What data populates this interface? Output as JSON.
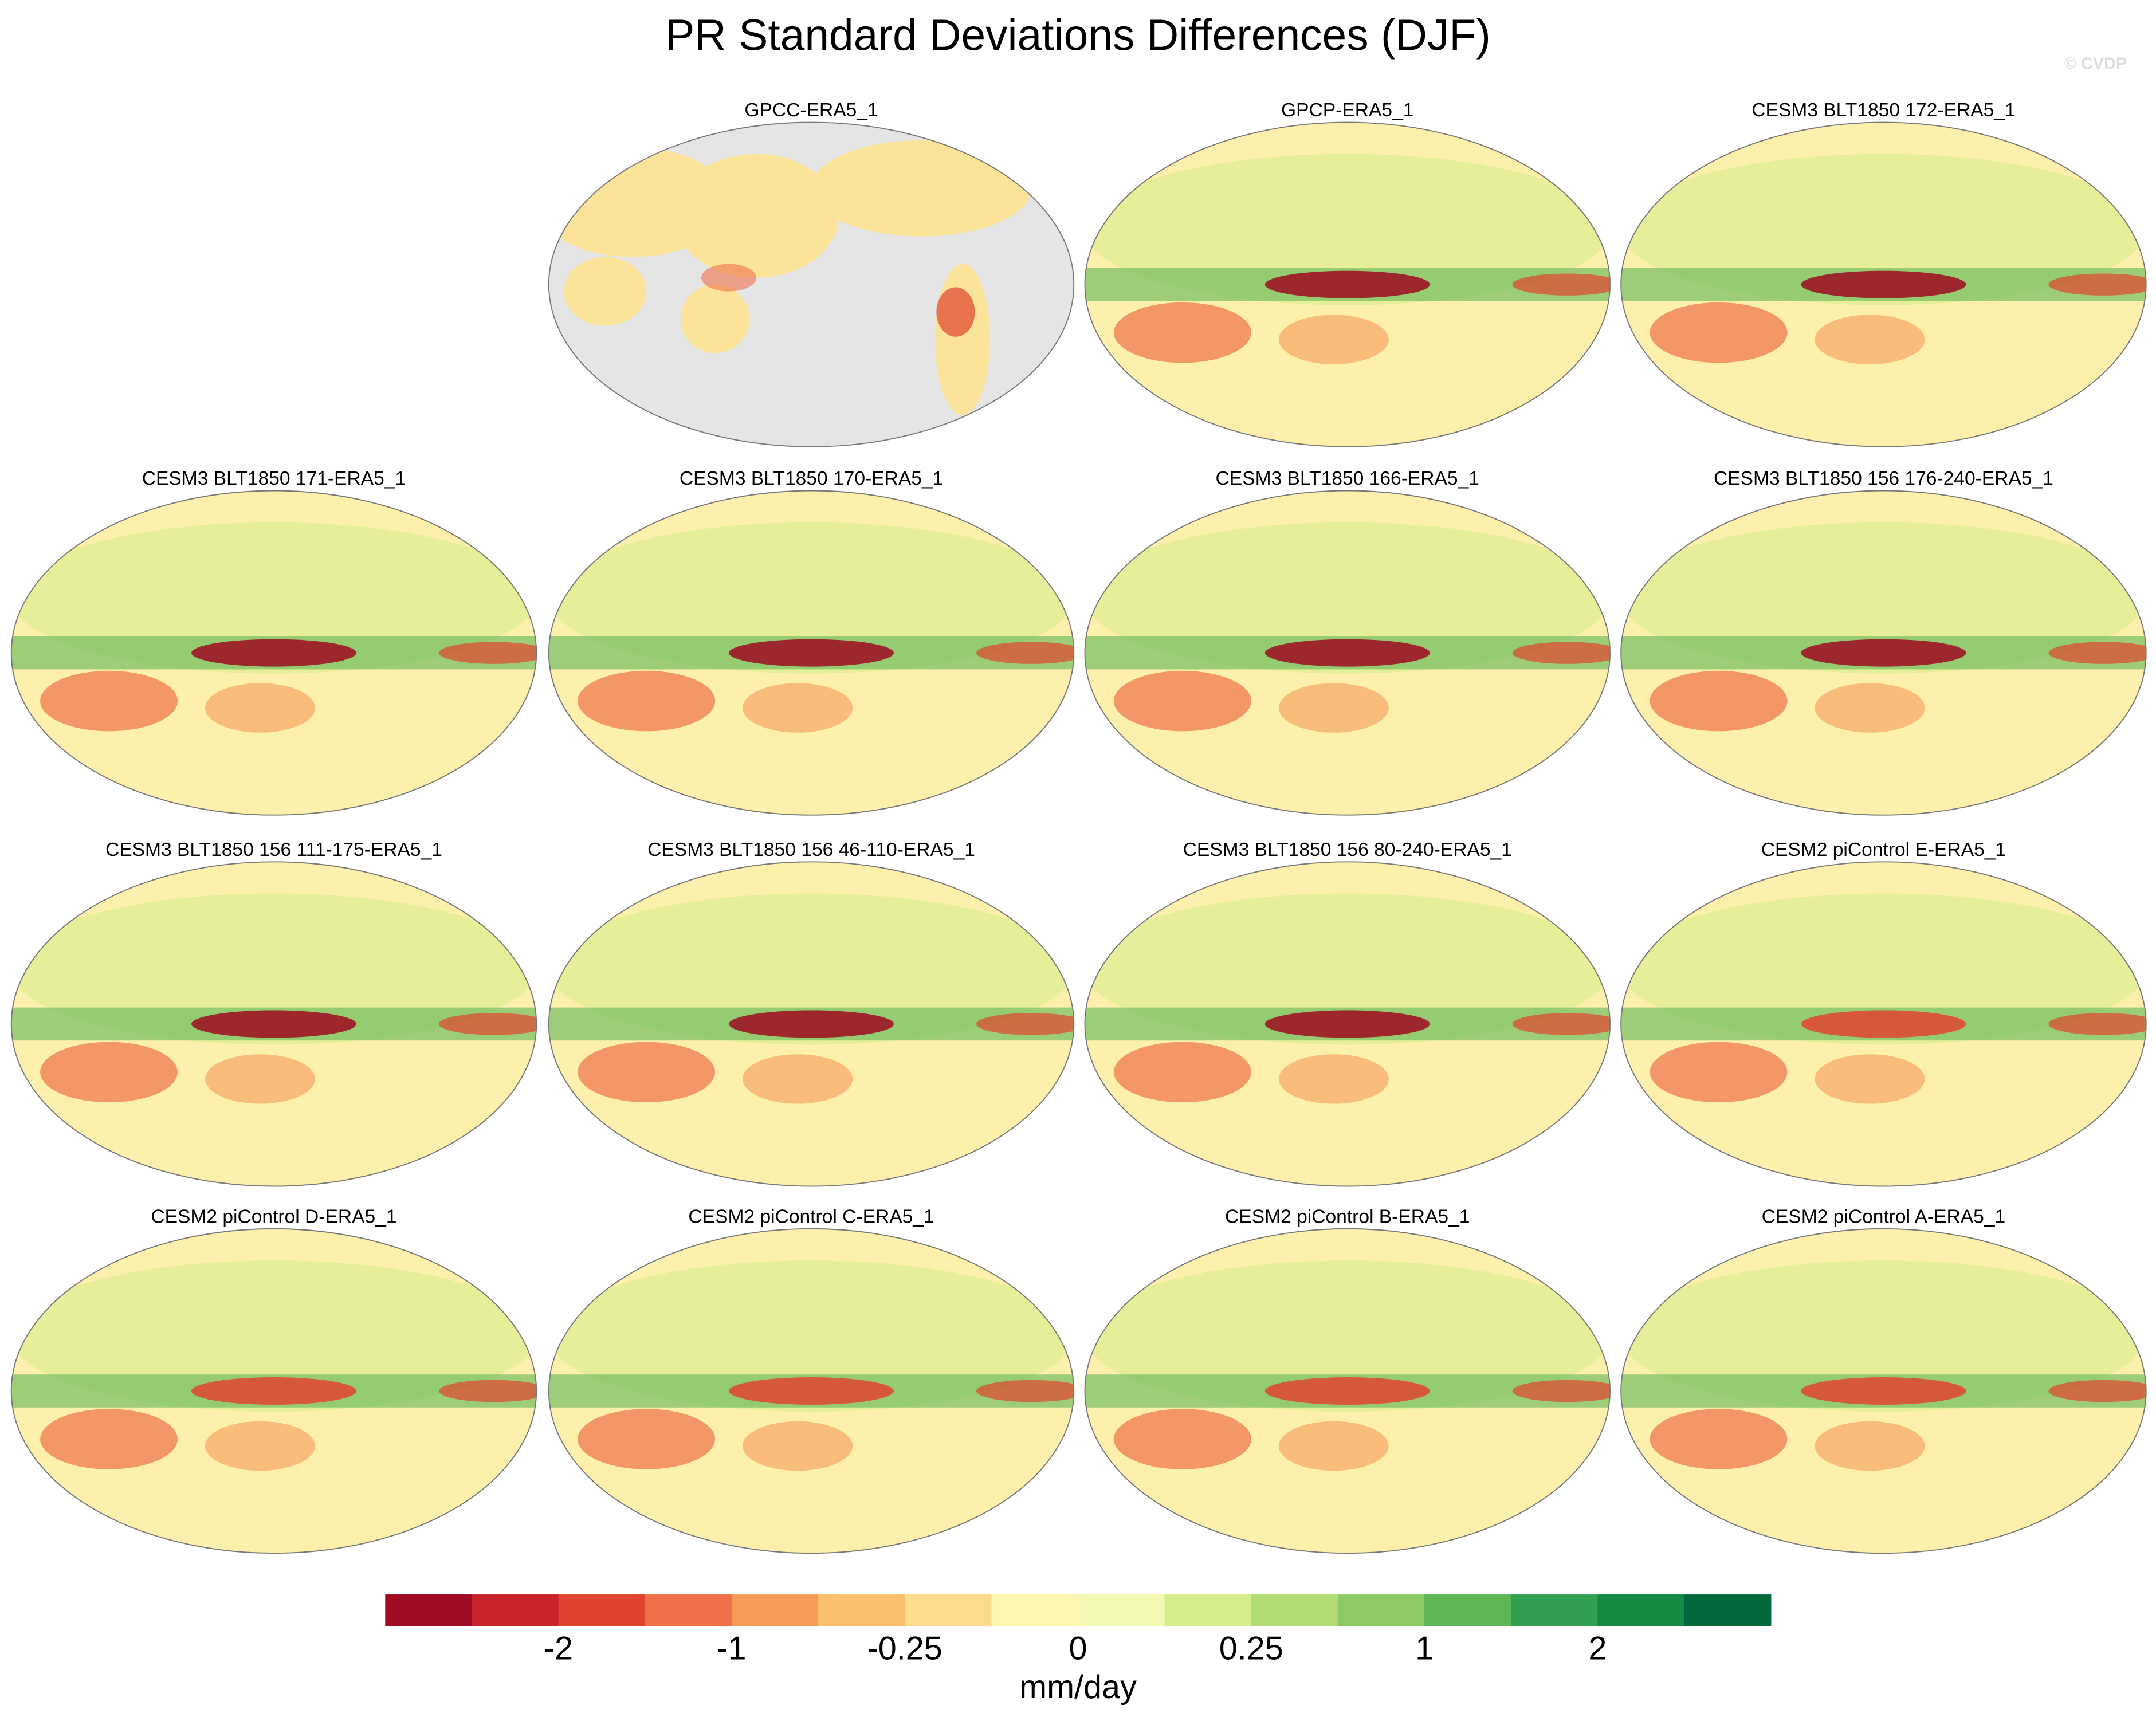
{
  "title": "PR Standard Deviations Differences (DJF)",
  "credit": "© CVDP",
  "panels": [
    {
      "title": "GPCC-ERA5_1"
    },
    {
      "title": "GPCP-ERA5_1"
    },
    {
      "title": "CESM3 BLT1850 172-ERA5_1"
    },
    {
      "title": "CESM3 BLT1850 171-ERA5_1"
    },
    {
      "title": "CESM3 BLT1850 170-ERA5_1"
    },
    {
      "title": "CESM3 BLT1850 166-ERA5_1"
    },
    {
      "title": "CESM3 BLT1850 156 176-240-ERA5_1"
    },
    {
      "title": "CESM3 BLT1850 156 111-175-ERA5_1"
    },
    {
      "title": "CESM3 BLT1850 156 46-110-ERA5_1"
    },
    {
      "title": "CESM3 BLT1850 156 80-240-ERA5_1"
    },
    {
      "title": "CESM2 piControl E-ERA5_1"
    },
    {
      "title": "CESM2 piControl D-ERA5_1"
    },
    {
      "title": "CESM2 piControl C-ERA5_1"
    },
    {
      "title": "CESM2 piControl B-ERA5_1"
    },
    {
      "title": "CESM2 piControl A-ERA5_1"
    }
  ],
  "colorbar": {
    "colors": [
      "#9e0a22",
      "#c8222a",
      "#e0442e",
      "#f0704a",
      "#f79a58",
      "#fbbf6e",
      "#fddd8c",
      "#fef5b0",
      "#f3f9b4",
      "#d5ed8a",
      "#b1dc74",
      "#8ccb64",
      "#5fb656",
      "#32a050",
      "#138a44",
      "#00683a"
    ],
    "ticks": [
      -2,
      -1,
      -0.25,
      0,
      0.25,
      1,
      2
    ],
    "label": "mm/day"
  }
}
